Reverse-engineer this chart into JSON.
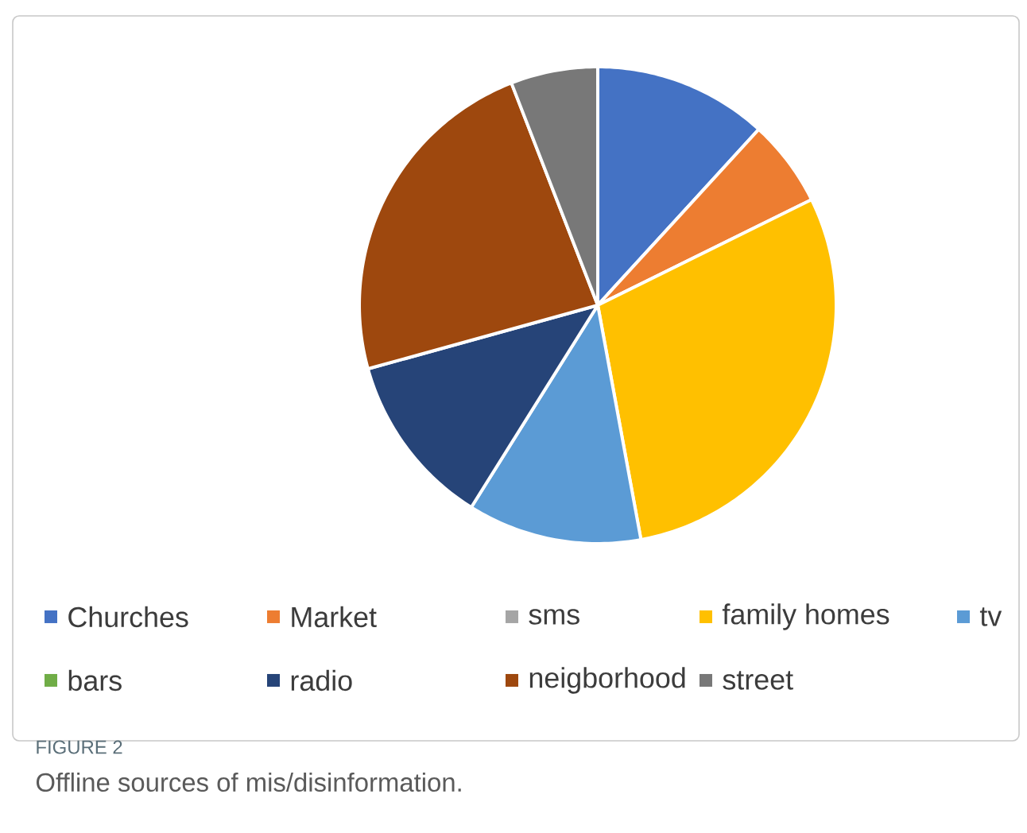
{
  "chart_data": {
    "type": "pie",
    "title": "FIGURE 2",
    "subtitle": "Offline sources of mis/disinformation.",
    "categories": [
      "Churches",
      "Market",
      "sms",
      "family homes",
      "tv",
      "bars",
      "radio",
      "neigborhood",
      "street"
    ],
    "values": [
      11.8,
      5.9,
      0,
      29.4,
      11.8,
      0,
      11.8,
      23.4,
      5.9
    ],
    "colors": [
      "#4472c4",
      "#ed7d31",
      "#a5a5a5",
      "#ffc000",
      "#5b9bd5",
      "#70ad47",
      "#264478",
      "#9e480e",
      "#787878"
    ],
    "legend": "bottom"
  }
}
